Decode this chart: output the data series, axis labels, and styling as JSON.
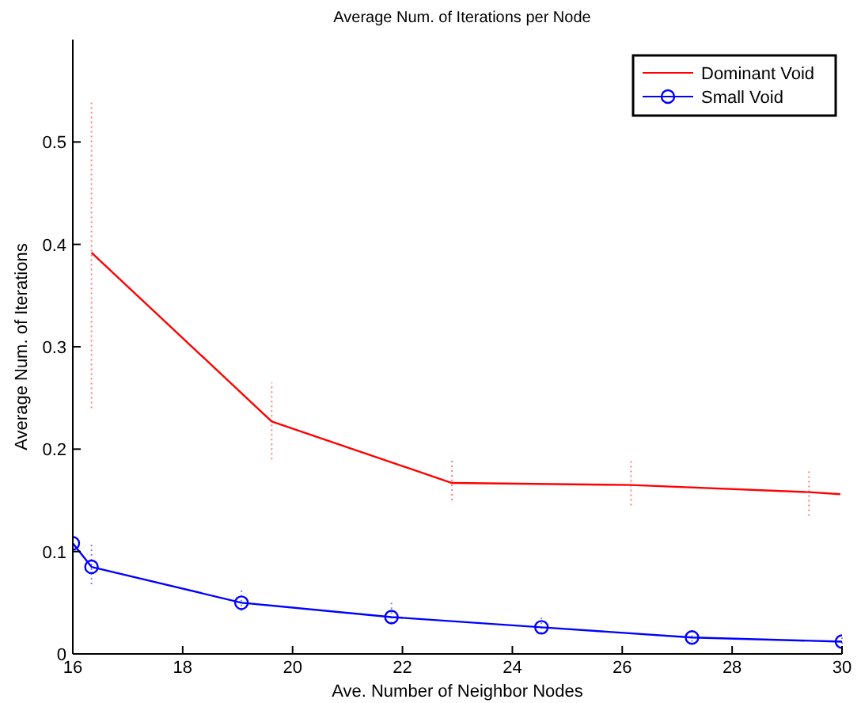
{
  "chart_data": {
    "type": "line",
    "title": "Average Num. of Iterations per Node",
    "xlabel": "Ave. Number of Neighbor Nodes",
    "ylabel": "Average Num. of Iterations",
    "xlim": [
      16,
      30
    ],
    "xticks": [
      16,
      18,
      20,
      22,
      24,
      26,
      28,
      30
    ],
    "ylim": [
      0,
      0.6
    ],
    "yticks": [
      0,
      0.1,
      0.2,
      0.3,
      0.4,
      0.5
    ],
    "grid": false,
    "legend": "top right",
    "series": [
      {
        "name": "Dominant Void",
        "color": "#ff0000",
        "marker": "none",
        "line_style": "solid",
        "x": [
          16.34,
          19.62,
          22.9,
          26.16,
          29.4,
          29.97
        ],
        "values": [
          0.392,
          0.227,
          0.167,
          0.165,
          0.158,
          0.156
        ],
        "errors": [
          [
            0.24,
            0.54
          ],
          [
            0.19,
            0.265
          ],
          [
            0.15,
            0.19
          ],
          [
            0.145,
            0.19
          ],
          [
            0.135,
            0.18
          ],
          null
        ]
      },
      {
        "name": "Small Void",
        "color": "#0000ff",
        "marker": "circle",
        "line_style": "solid",
        "x": [
          16,
          16.34,
          19.07,
          21.8,
          24.53,
          27.27,
          30
        ],
        "values": [
          0.108,
          0.085,
          0.05,
          0.036,
          0.026,
          0.016,
          0.012
        ],
        "errors": [
          null,
          [
            0.068,
            0.107
          ],
          [
            0.042,
            0.065
          ],
          [
            0.03,
            0.05
          ],
          [
            0.02,
            0.038
          ],
          [
            0.012,
            0.022
          ],
          [
            0.01,
            0.016
          ]
        ]
      }
    ]
  }
}
